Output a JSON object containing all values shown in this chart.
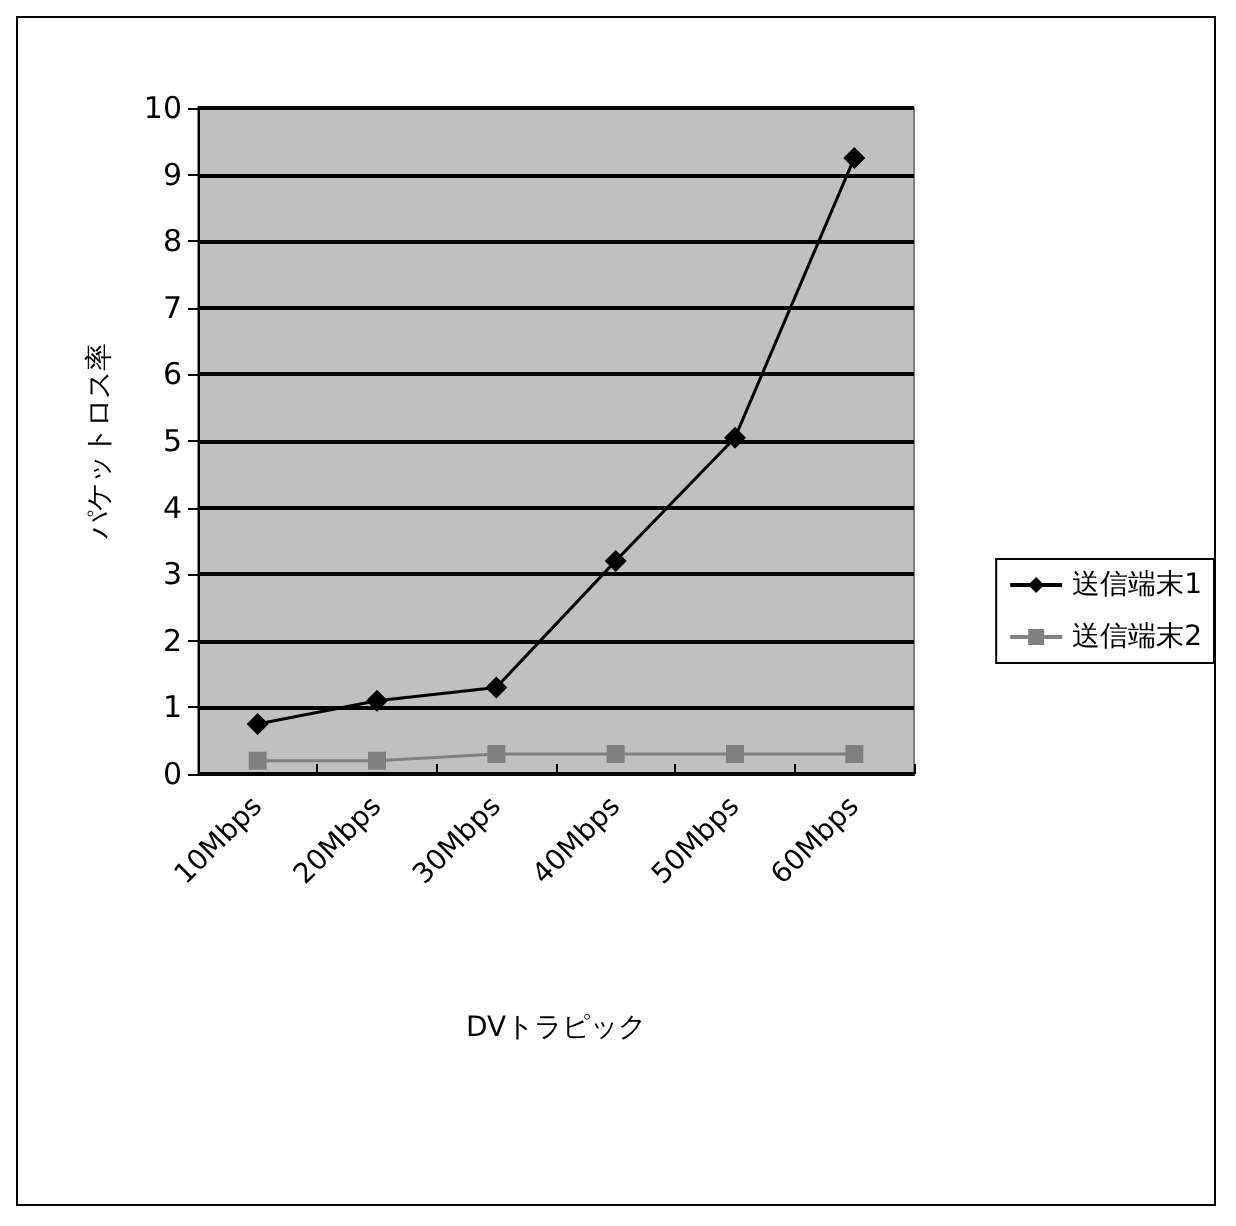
{
  "chart_data": {
    "type": "line",
    "xlabel": "DVトラピック",
    "ylabel": "パケットロス率",
    "categories": [
      "10Mbps",
      "20Mbps",
      "30Mbps",
      "40Mbps",
      "50Mbps",
      "60Mbps"
    ],
    "series": [
      {
        "name": "送信端末1",
        "color": "#000000",
        "marker": "diamond",
        "values": [
          0.75,
          1.1,
          1.3,
          3.2,
          5.05,
          9.25
        ]
      },
      {
        "name": "送信端末2",
        "color": "#808080",
        "marker": "square",
        "values": [
          0.2,
          0.2,
          0.3,
          0.3,
          0.3,
          0.3
        ]
      }
    ],
    "ylim": [
      0,
      10
    ],
    "yticks": [
      0,
      1,
      2,
      3,
      4,
      5,
      6,
      7,
      8,
      9,
      10
    ],
    "grid": "y",
    "legend": "right"
  }
}
